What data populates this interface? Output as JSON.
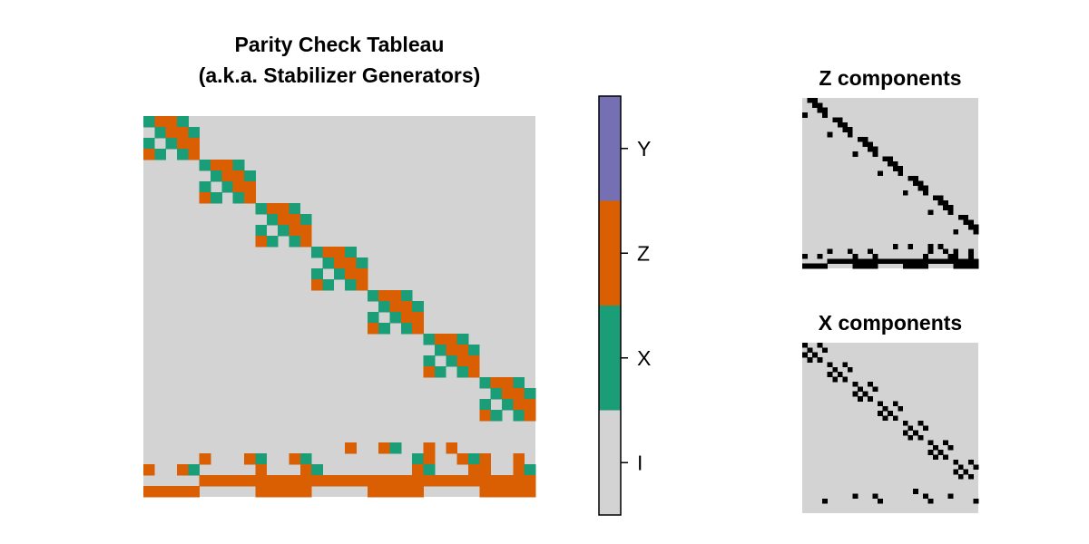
{
  "chart_data": [
    {
      "type": "heatmap",
      "title_lines": [
        "Parity Check Tableau",
        "(a.k.a. Stabilizer Generators)"
      ],
      "rows": 35,
      "cols": 35,
      "encoding": {
        "0": "I",
        "1": "X",
        "2": "Z",
        "3": "Y"
      },
      "blocks": {
        "count": 7,
        "size": 5,
        "pattern": [
          [
            1,
            2,
            2,
            1,
            0
          ],
          [
            0,
            1,
            2,
            2,
            1
          ],
          [
            1,
            0,
            1,
            2,
            2
          ],
          [
            2,
            1,
            0,
            1,
            2
          ]
        ]
      },
      "logical_rows": [
        [
          0,
          0,
          0,
          0,
          0,
          0,
          0,
          0,
          0,
          0,
          0,
          0,
          0,
          0,
          0,
          0,
          0,
          0,
          0,
          0,
          0,
          0,
          0,
          0,
          0,
          0,
          0,
          0,
          0,
          0,
          0,
          0,
          0,
          0,
          0
        ],
        [
          0,
          0,
          0,
          0,
          0,
          0,
          0,
          0,
          0,
          0,
          0,
          0,
          0,
          0,
          0,
          0,
          0,
          0,
          0,
          0,
          0,
          0,
          0,
          0,
          0,
          0,
          0,
          0,
          0,
          0,
          0,
          0,
          0,
          0,
          0
        ],
        [
          0,
          0,
          0,
          0,
          0,
          0,
          0,
          0,
          0,
          0,
          0,
          0,
          0,
          0,
          0,
          0,
          0,
          0,
          2,
          0,
          0,
          2,
          1,
          0,
          0,
          2,
          0,
          2,
          0,
          0,
          0,
          0,
          0,
          0,
          0
        ],
        [
          0,
          0,
          0,
          0,
          0,
          2,
          0,
          0,
          0,
          2,
          1,
          0,
          0,
          2,
          1,
          0,
          0,
          0,
          0,
          0,
          0,
          0,
          0,
          0,
          1,
          2,
          0,
          0,
          2,
          1,
          2,
          0,
          0,
          2,
          0
        ],
        [
          2,
          0,
          0,
          2,
          1,
          0,
          0,
          0,
          0,
          0,
          2,
          0,
          0,
          0,
          2,
          1,
          0,
          0,
          0,
          0,
          0,
          0,
          0,
          0,
          2,
          1,
          0,
          0,
          0,
          2,
          2,
          0,
          0,
          2,
          1
        ],
        [
          0,
          0,
          0,
          0,
          0,
          2,
          2,
          2,
          2,
          2,
          2,
          2,
          2,
          2,
          2,
          2,
          2,
          2,
          2,
          2,
          2,
          2,
          2,
          2,
          2,
          2,
          2,
          2,
          2,
          2,
          2,
          2,
          2,
          2,
          2
        ],
        [
          2,
          2,
          2,
          2,
          2,
          0,
          0,
          0,
          0,
          0,
          2,
          2,
          2,
          2,
          2,
          0,
          0,
          0,
          0,
          0,
          2,
          2,
          2,
          2,
          2,
          0,
          0,
          0,
          0,
          0,
          2,
          2,
          2,
          2,
          2
        ]
      ]
    },
    {
      "type": "legend-colorbar",
      "ticks": [
        "I",
        "X",
        "Z",
        "Y"
      ],
      "colors": {
        "I": "#d3d3d3",
        "X": "#1b9e77",
        "Z": "#d95f02",
        "Y": "#7570b3"
      }
    },
    {
      "type": "heatmap",
      "title": "Z components",
      "source": "Z part of tableau (Z or Y = black)"
    },
    {
      "type": "heatmap",
      "title": "X components",
      "source": "X part of tableau (X or Y = black)"
    }
  ],
  "colors": {
    "background_cell": "#d3d3d3",
    "binary_on": "#000000",
    "frame": "#000000"
  }
}
